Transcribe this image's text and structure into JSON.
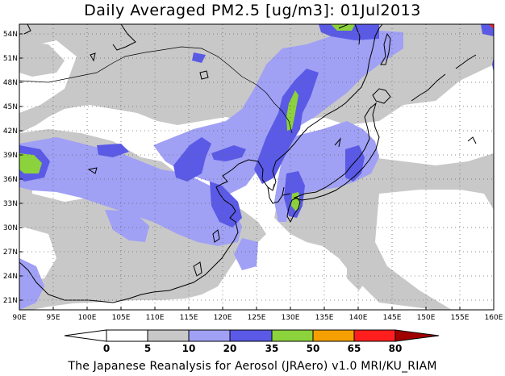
{
  "map": {
    "title": "Daily Averaged PM2.5 [ug/m3]: 01Jul2013",
    "credit": "The Japanese Reanalysis for Aerosol (JRAero) v1.0 MRI/KU_RIAM",
    "lon_labels": [
      "90E",
      "95E",
      "100E",
      "105E",
      "110E",
      "115E",
      "120E",
      "125E",
      "130E",
      "135E",
      "140E",
      "145E",
      "150E",
      "155E",
      "160E"
    ],
    "lat_labels": [
      "54N",
      "51N",
      "48N",
      "45N",
      "42N",
      "39N",
      "36N",
      "33N",
      "30N",
      "27N",
      "24N",
      "21N"
    ],
    "extent": {
      "lon": [
        90,
        160
      ],
      "lat": [
        20,
        55
      ]
    },
    "grid": "dotted"
  },
  "colorbar": {
    "levels": [
      "0",
      "5",
      "10",
      "20",
      "35",
      "50",
      "65",
      "80"
    ],
    "colors": [
      "#ffffff",
      "#c8c8c8",
      "#a0a0f5",
      "#5a5ae6",
      "#8cd23c",
      "#f5a000",
      "#ff1e1e",
      "#a00000"
    ]
  }
}
